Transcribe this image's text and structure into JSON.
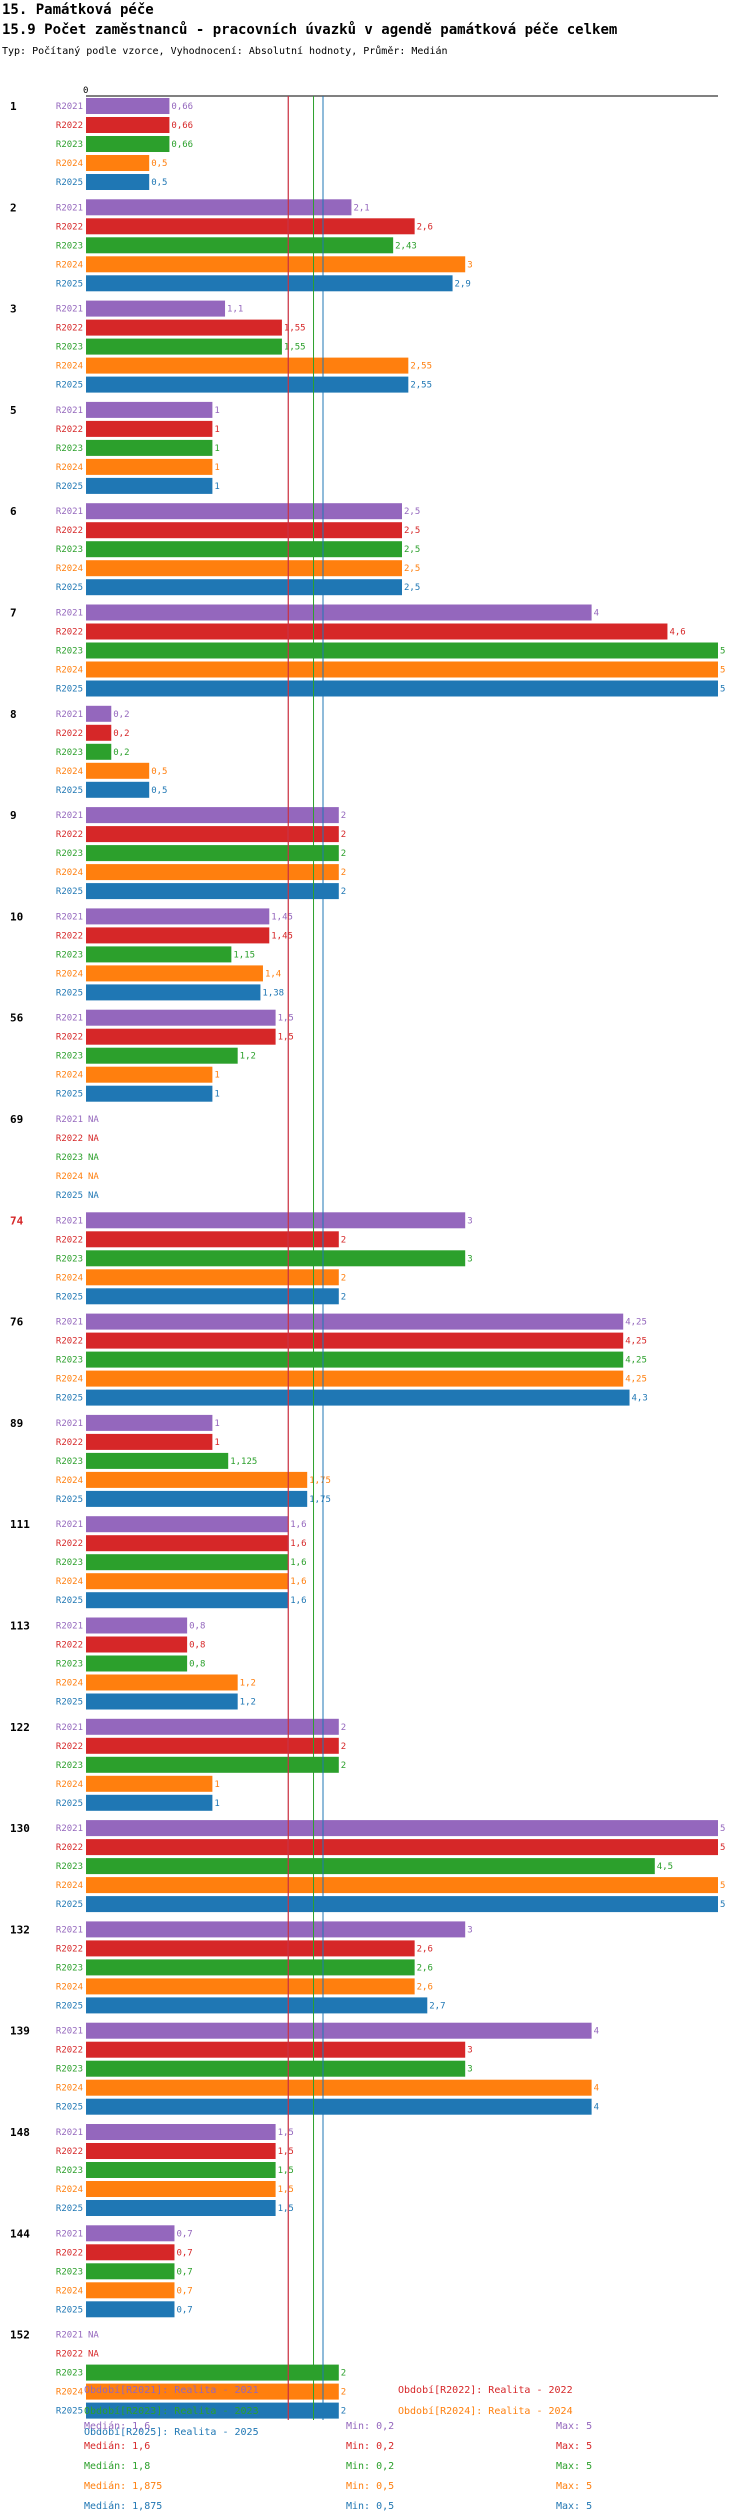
{
  "header": {
    "title1": "15. Památková péče",
    "title2": "15.9 Počet zaměstnanců - pracovních úvazků v agendě památková péče celkem",
    "subtitle": "Typ: Počítaný podle vzorce, Vyhodnocení: Absolutní hodnoty, Průměr: Medián"
  },
  "colors": {
    "R2021": "#9467bd",
    "R2022": "#d62728",
    "R2023": "#2ca02c",
    "R2024": "#ff7f0e",
    "R2025": "#1f77b4",
    "highlight_group": "#d62728"
  },
  "chart_data": {
    "type": "bar",
    "orientation": "horizontal",
    "axis_zero_label": "0",
    "xlim": [
      0,
      5
    ],
    "series_names": [
      "R2021",
      "R2022",
      "R2023",
      "R2024",
      "R2025"
    ],
    "groups": [
      {
        "id": "1",
        "highlight": false,
        "labels": [
          "0,66",
          "0,66",
          "0,66",
          "0,5",
          "0,5"
        ],
        "values": [
          0.66,
          0.66,
          0.66,
          0.5,
          0.5
        ]
      },
      {
        "id": "2",
        "highlight": false,
        "labels": [
          "2,1",
          "2,6",
          "2,43",
          "3",
          "2,9"
        ],
        "values": [
          2.1,
          2.6,
          2.43,
          3,
          2.9
        ]
      },
      {
        "id": "3",
        "highlight": false,
        "labels": [
          "1,1",
          "1,55",
          "1,55",
          "2,55",
          "2,55"
        ],
        "values": [
          1.1,
          1.55,
          1.55,
          2.55,
          2.55
        ]
      },
      {
        "id": "5",
        "highlight": false,
        "labels": [
          "1",
          "1",
          "1",
          "1",
          "1"
        ],
        "values": [
          1,
          1,
          1,
          1,
          1
        ]
      },
      {
        "id": "6",
        "highlight": false,
        "labels": [
          "2,5",
          "2,5",
          "2,5",
          "2,5",
          "2,5"
        ],
        "values": [
          2.5,
          2.5,
          2.5,
          2.5,
          2.5
        ]
      },
      {
        "id": "7",
        "highlight": false,
        "labels": [
          "4",
          "4,6",
          "5",
          "5",
          "5"
        ],
        "values": [
          4,
          4.6,
          5,
          5,
          5
        ]
      },
      {
        "id": "8",
        "highlight": false,
        "labels": [
          "0,2",
          "0,2",
          "0,2",
          "0,5",
          "0,5"
        ],
        "values": [
          0.2,
          0.2,
          0.2,
          0.5,
          0.5
        ]
      },
      {
        "id": "9",
        "highlight": false,
        "labels": [
          "2",
          "2",
          "2",
          "2",
          "2"
        ],
        "values": [
          2,
          2,
          2,
          2,
          2
        ]
      },
      {
        "id": "10",
        "highlight": false,
        "labels": [
          "1,45",
          "1,45",
          "1,15",
          "1,4",
          "1,38"
        ],
        "values": [
          1.45,
          1.45,
          1.15,
          1.4,
          1.38
        ]
      },
      {
        "id": "56",
        "highlight": false,
        "labels": [
          "1,5",
          "1,5",
          "1,2",
          "1",
          "1"
        ],
        "values": [
          1.5,
          1.5,
          1.2,
          1,
          1
        ]
      },
      {
        "id": "69",
        "highlight": false,
        "labels": [
          "NA",
          "NA",
          "NA",
          "NA",
          "NA"
        ],
        "values": [
          null,
          null,
          null,
          null,
          null
        ]
      },
      {
        "id": "74",
        "highlight": true,
        "labels": [
          "3",
          "2",
          "3",
          "2",
          "2"
        ],
        "values": [
          3,
          2,
          3,
          2,
          2
        ]
      },
      {
        "id": "76",
        "highlight": false,
        "labels": [
          "4,25",
          "4,25",
          "4,25",
          "4,25",
          "4,3"
        ],
        "values": [
          4.25,
          4.25,
          4.25,
          4.25,
          4.3
        ]
      },
      {
        "id": "89",
        "highlight": false,
        "labels": [
          "1",
          "1",
          "1,125",
          "1,75",
          "1,75"
        ],
        "values": [
          1,
          1,
          1.125,
          1.75,
          1.75
        ]
      },
      {
        "id": "111",
        "highlight": false,
        "labels": [
          "1,6",
          "1,6",
          "1,6",
          "1,6",
          "1,6"
        ],
        "values": [
          1.6,
          1.6,
          1.6,
          1.6,
          1.6
        ]
      },
      {
        "id": "113",
        "highlight": false,
        "labels": [
          "0,8",
          "0,8",
          "0,8",
          "1,2",
          "1,2"
        ],
        "values": [
          0.8,
          0.8,
          0.8,
          1.2,
          1.2
        ]
      },
      {
        "id": "122",
        "highlight": false,
        "labels": [
          "2",
          "2",
          "2",
          "1",
          "1"
        ],
        "values": [
          2,
          2,
          2,
          1,
          1
        ]
      },
      {
        "id": "130",
        "highlight": false,
        "labels": [
          "5",
          "5",
          "4,5",
          "5",
          "5"
        ],
        "values": [
          5,
          5,
          4.5,
          5,
          5
        ]
      },
      {
        "id": "132",
        "highlight": false,
        "labels": [
          "3",
          "2,6",
          "2,6",
          "2,6",
          "2,7"
        ],
        "values": [
          3,
          2.6,
          2.6,
          2.6,
          2.7
        ]
      },
      {
        "id": "139",
        "highlight": false,
        "labels": [
          "4",
          "3",
          "3",
          "4",
          "4"
        ],
        "values": [
          4,
          3,
          3,
          4,
          4
        ]
      },
      {
        "id": "148",
        "highlight": false,
        "labels": [
          "1,5",
          "1,5",
          "1,5",
          "1,5",
          "1,5"
        ],
        "values": [
          1.5,
          1.5,
          1.5,
          1.5,
          1.5
        ]
      },
      {
        "id": "144",
        "highlight": false,
        "labels": [
          "0,7",
          "0,7",
          "0,7",
          "0,7",
          "0,7"
        ],
        "values": [
          0.7,
          0.7,
          0.7,
          0.7,
          0.7
        ]
      },
      {
        "id": "152",
        "highlight": false,
        "labels": [
          "NA",
          "NA",
          "2",
          "2",
          "2"
        ],
        "values": [
          null,
          null,
          2,
          2,
          2
        ]
      }
    ],
    "median_lines": [
      {
        "series": "R2021",
        "value": 1.6
      },
      {
        "series": "R2022",
        "value": 1.6
      },
      {
        "series": "R2023",
        "value": 1.8
      },
      {
        "series": "R2024",
        "value": 1.875
      },
      {
        "series": "R2025",
        "value": 1.875
      }
    ]
  },
  "legend": [
    {
      "series": "R2021",
      "text": "Období[R2021]: Realita - 2021"
    },
    {
      "series": "R2022",
      "text": "Období[R2022]: Realita - 2022"
    },
    {
      "series": "R2023",
      "text": "Období[R2023]: Realita - 2023"
    },
    {
      "series": "R2024",
      "text": "Období[R2024]: Realita - 2024"
    },
    {
      "series": "R2025",
      "text": "Období[R2025]: Realita - 2025"
    }
  ],
  "stats": [
    {
      "series": "R2021",
      "median": "Medián: 1,6",
      "min": "Min: 0,2",
      "max": "Max: 5"
    },
    {
      "series": "R2022",
      "median": "Medián: 1,6",
      "min": "Min: 0,2",
      "max": "Max: 5"
    },
    {
      "series": "R2023",
      "median": "Medián: 1,8",
      "min": "Min: 0,2",
      "max": "Max: 5"
    },
    {
      "series": "R2024",
      "median": "Medián: 1,875",
      "min": "Min: 0,5",
      "max": "Max: 5"
    },
    {
      "series": "R2025",
      "median": "Medián: 1,875",
      "min": "Min: 0,5",
      "max": "Max: 5"
    }
  ]
}
